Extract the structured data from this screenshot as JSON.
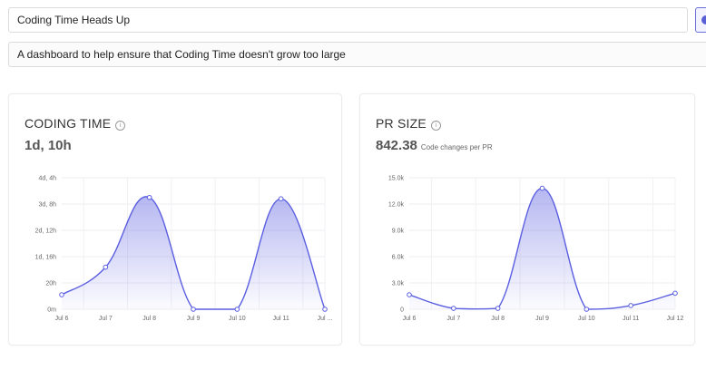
{
  "dashboard": {
    "title": "Coding Time Heads Up",
    "description": "A dashboard to help ensure that Coding Time doesn't grow too large"
  },
  "cards": [
    {
      "title": "CODING TIME",
      "info_icon": "info-circle-icon",
      "value": "1d, 10h",
      "unit": ""
    },
    {
      "title": "PR SIZE",
      "info_icon": "info-circle-icon",
      "value": "842.38",
      "unit": "Code changes per PR"
    }
  ],
  "chart_data": [
    {
      "type": "area",
      "x": [
        "Jul 6",
        "Jul 7",
        "Jul 8",
        "Jul 9",
        "Jul 10",
        "Jul 11",
        "Jul ..."
      ],
      "values": [
        11,
        32,
        85,
        0,
        0,
        84,
        0
      ],
      "yunit": "hours",
      "ylim": [
        0,
        100
      ],
      "yticks": [
        0,
        20,
        40,
        60,
        80,
        100
      ],
      "ytick_labels": [
        "0m",
        "20h",
        "1d, 16h",
        "2d, 12h",
        "3d, 8h",
        "4d, 4h"
      ],
      "grid": true,
      "color": "#5b5fe0"
    },
    {
      "type": "area",
      "x": [
        "Jul 6",
        "Jul 7",
        "Jul 8",
        "Jul 9",
        "Jul 10",
        "Jul 11",
        "Jul 12"
      ],
      "values": [
        1650,
        100,
        100,
        13800,
        0,
        420,
        1830
      ],
      "ylim": [
        0,
        15000
      ],
      "yticks": [
        0,
        3000,
        6000,
        9000,
        12000,
        15000
      ],
      "ytick_labels": [
        "0",
        "3.0k",
        "6.0k",
        "9.0k",
        "12.0k",
        "15.0k"
      ],
      "grid": true,
      "color": "#5b5fe0"
    }
  ]
}
